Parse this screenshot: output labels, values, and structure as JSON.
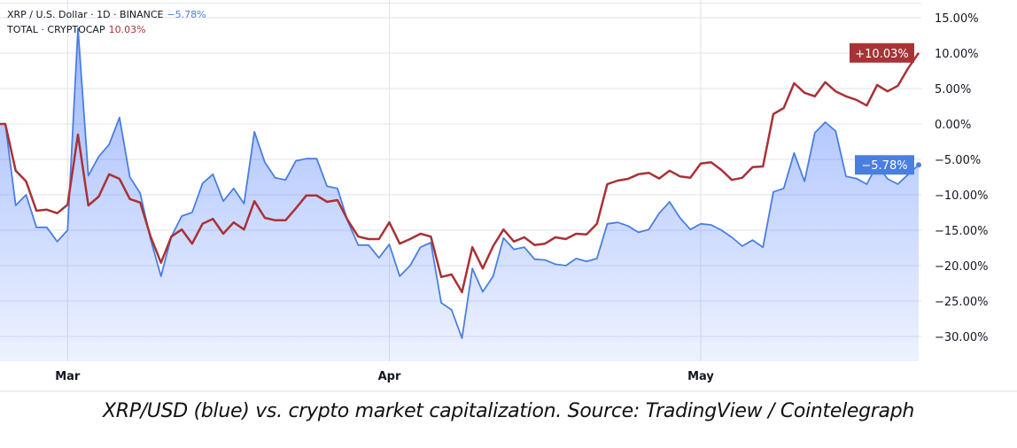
{
  "legend": {
    "series1_label": "XRP / U.S. Dollar · 1D · BINANCE",
    "series1_value": "−5.78%",
    "series2_label": "TOTAL · CRYPTOCAP",
    "series2_value": "10.03%"
  },
  "caption": "XRP/USD (blue) vs. crypto market capitalization. Source: TradingView / Cointelegraph",
  "chart_data": {
    "type": "line",
    "title": "",
    "xlabel": "",
    "ylabel": "",
    "y_unit": "%",
    "ylim": [
      -34,
      17
    ],
    "y_ticks": [
      15,
      10,
      5,
      0,
      -5,
      -10,
      -15,
      -20,
      -25,
      -30
    ],
    "y_tick_labels": [
      "15.00%",
      "10.00%",
      "5.00%",
      "0.00%",
      "−5.00%",
      "−10.00%",
      "−15.00%",
      "−20.00%",
      "−25.00%",
      "−30.00%"
    ],
    "x_ticks": [
      {
        "date": "03-01",
        "label": "Mar"
      },
      {
        "date": "04-01",
        "label": "Apr"
      },
      {
        "date": "05-01",
        "label": "May"
      }
    ],
    "grid": true,
    "legend": "top-left",
    "dates": [
      "02-23",
      "02-24",
      "02-25",
      "02-26",
      "02-27",
      "02-28",
      "03-01",
      "03-02",
      "03-03",
      "03-04",
      "03-05",
      "03-06",
      "03-07",
      "03-08",
      "03-09",
      "03-10",
      "03-11",
      "03-12",
      "03-13",
      "03-14",
      "03-15",
      "03-16",
      "03-17",
      "03-18",
      "03-19",
      "03-20",
      "03-21",
      "03-22",
      "03-23",
      "03-24",
      "03-25",
      "03-26",
      "03-27",
      "03-28",
      "03-29",
      "03-30",
      "03-31",
      "04-01",
      "04-02",
      "04-03",
      "04-04",
      "04-05",
      "04-06",
      "04-07",
      "04-08",
      "04-09",
      "04-10",
      "04-11",
      "04-12",
      "04-13",
      "04-14",
      "04-15",
      "04-16",
      "04-17",
      "04-18",
      "04-19",
      "04-20",
      "04-21",
      "04-22",
      "04-23",
      "04-24",
      "04-25",
      "04-26",
      "04-27",
      "04-28",
      "04-29",
      "04-30",
      "05-01",
      "05-02",
      "05-03",
      "05-04",
      "05-05",
      "05-06",
      "05-07",
      "05-08",
      "05-09",
      "05-10",
      "05-11",
      "05-12",
      "05-13",
      "05-14",
      "05-15",
      "05-16",
      "05-17",
      "05-18",
      "05-19",
      "05-20",
      "05-21",
      "05-22"
    ],
    "series": [
      {
        "name": "XRP / U.S. Dollar · 1D · BINANCE",
        "color": "#4a7fe0",
        "last_label": "−5.78%",
        "values": [
          0,
          -11.5,
          -10,
          -14.6,
          -14.6,
          -16.6,
          -15,
          13.5,
          -7.3,
          -4.6,
          -2.9,
          0.9,
          -7.5,
          -9.8,
          -16.3,
          -21.5,
          -15.9,
          -13,
          -12.5,
          -8.4,
          -7.1,
          -10.9,
          -9.1,
          -11.25,
          -1.1,
          -5.4,
          -7.6,
          -7.9,
          -5.2,
          -4.9,
          -4.9,
          -8.8,
          -9.1,
          -13.75,
          -17.1,
          -17.1,
          -18.9,
          -17,
          -21.5,
          -20,
          -17.4,
          -16.75,
          -25.25,
          -26.25,
          -30.25,
          -20.4,
          -23.7,
          -21.5,
          -16.1,
          -17.7,
          -17.4,
          -19.1,
          -19.2,
          -19.8,
          -20,
          -19,
          -19.4,
          -19,
          -14.1,
          -13.9,
          -14.4,
          -15.3,
          -14.9,
          -12.6,
          -11,
          -13.25,
          -14.9,
          -14.1,
          -14.25,
          -15,
          -16,
          -17.25,
          -16.4,
          -17.4,
          -9.6,
          -9.1,
          -4.1,
          -8.1,
          -1.25,
          0.25,
          -1,
          -7.4,
          -7.7,
          -8.5,
          -5.75,
          -7.75,
          -8.5,
          -7.1,
          -5.78
        ]
      },
      {
        "name": "TOTAL · CRYPTOCAP",
        "color": "#a83236",
        "last_label": "+10.03%",
        "values": [
          0,
          -6.6,
          -8.1,
          -12.25,
          -12.1,
          -12.6,
          -11.4,
          -1.5,
          -11.5,
          -10.25,
          -7.1,
          -7.75,
          -10.6,
          -11.1,
          -15.9,
          -19.6,
          -15.9,
          -14.9,
          -16.9,
          -14.1,
          -13.4,
          -15.5,
          -13.9,
          -14.9,
          -10.9,
          -13.25,
          -13.6,
          -13.6,
          -11.9,
          -10.1,
          -10.1,
          -11,
          -10.75,
          -13.6,
          -15.9,
          -16.25,
          -16.25,
          -13.9,
          -16.9,
          -16.25,
          -15.5,
          -15.9,
          -21.6,
          -21.25,
          -23.75,
          -17.4,
          -20.4,
          -17.25,
          -14.9,
          -16.6,
          -16,
          -17.1,
          -16.9,
          -16,
          -16.25,
          -15.5,
          -15.6,
          -14.1,
          -8.5,
          -8,
          -7.75,
          -7.1,
          -6.9,
          -7.7,
          -6.6,
          -7.4,
          -7.6,
          -5.6,
          -5.4,
          -6.5,
          -7.9,
          -7.6,
          -6.1,
          -6,
          1.4,
          2.25,
          5.75,
          4.4,
          3.9,
          5.9,
          4.6,
          3.9,
          3.4,
          2.6,
          5.5,
          4.6,
          5.4,
          7.9,
          10.03
        ]
      }
    ]
  }
}
